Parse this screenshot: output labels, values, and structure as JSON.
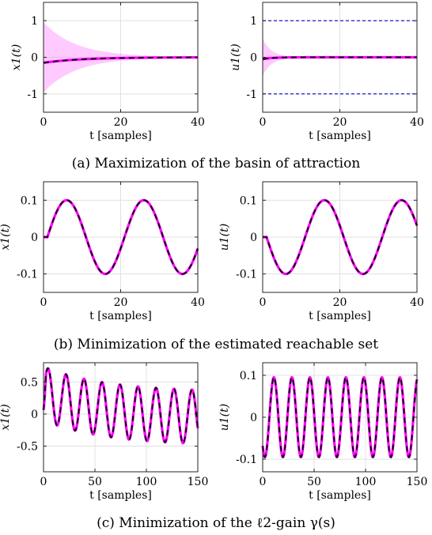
{
  "chart_data": [
    {
      "type": "line",
      "row": 0,
      "col": 0,
      "ylabel": "x1(t)",
      "xlabel": "t [samples]",
      "xlim": [
        0,
        40
      ],
      "ylim": [
        -1.5,
        1.5
      ],
      "xticks": [
        0,
        20,
        40
      ],
      "yticks": [
        -1,
        0,
        1
      ],
      "xtick_labels": [
        "0",
        "20",
        "40"
      ],
      "ytick_labels": [
        "-1",
        "0",
        "1"
      ],
      "grid": true,
      "band": {
        "color": "#ff66ff",
        "kind": "envelope",
        "amp": 0.95,
        "decay": 0.12
      },
      "series": [
        {
          "color": "#ff00ff",
          "dashed_overlay": "#000000",
          "kind": "approach",
          "start": -0.15,
          "decay": 0.1
        }
      ],
      "caption": "(a) Maximization of the basin of attraction"
    },
    {
      "type": "line",
      "row": 0,
      "col": 1,
      "ylabel": "u1(t)",
      "xlabel": "t [samples]",
      "xlim": [
        0,
        40
      ],
      "ylim": [
        -1.5,
        1.5
      ],
      "xticks": [
        0,
        20,
        40
      ],
      "yticks": [
        -1,
        0,
        1
      ],
      "xtick_labels": [
        "0",
        "20",
        "40"
      ],
      "ytick_labels": [
        "-1",
        "0",
        "1"
      ],
      "grid": true,
      "hlines": [
        {
          "y": 1,
          "color": "#0000cc"
        },
        {
          "y": -1,
          "color": "#0000cc"
        }
      ],
      "band": {
        "color": "#ff66ff",
        "kind": "envelope",
        "amp": 0.5,
        "decay": 0.45
      },
      "series": [
        {
          "color": "#ff00ff",
          "dashed_overlay": "#000000",
          "kind": "approach",
          "start": -0.05,
          "decay": 0.4
        }
      ]
    },
    {
      "type": "line",
      "row": 1,
      "col": 0,
      "ylabel": "x1(t)",
      "xlabel": "t [samples]",
      "xlim": [
        0,
        40
      ],
      "ylim": [
        -0.15,
        0.15
      ],
      "xticks": [
        0,
        20,
        40
      ],
      "yticks": [
        -0.1,
        0,
        0.1
      ],
      "xtick_labels": [
        "0",
        "20",
        "40"
      ],
      "ytick_labels": [
        "-0.1",
        "0",
        "0.1"
      ],
      "grid": true,
      "series": [
        {
          "color": "#ff00ff",
          "dashed_overlay": "#000000",
          "kind": "sine",
          "amp": 0.1,
          "period": 20,
          "start": 1,
          "phase": 0,
          "sign": 1
        }
      ],
      "caption": "(b) Minimization of the estimated reachable set"
    },
    {
      "type": "line",
      "row": 1,
      "col": 1,
      "ylabel": "u1(t)",
      "xlabel": "t [samples]",
      "xlim": [
        0,
        40
      ],
      "ylim": [
        -0.15,
        0.15
      ],
      "xticks": [
        0,
        20,
        40
      ],
      "yticks": [
        -0.1,
        0,
        0.1
      ],
      "xtick_labels": [
        "0",
        "20",
        "40"
      ],
      "ytick_labels": [
        "-0.1",
        "0",
        "0.1"
      ],
      "grid": true,
      "series": [
        {
          "color": "#ff00ff",
          "dashed_overlay": "#000000",
          "kind": "sine",
          "amp": 0.1,
          "period": 20,
          "start": 1,
          "phase": 0,
          "sign": -1
        }
      ]
    },
    {
      "type": "line",
      "row": 2,
      "col": 0,
      "ylabel": "x1(t)",
      "xlabel": "t [samples]",
      "xlim": [
        0,
        150
      ],
      "ylim": [
        -0.9,
        0.8
      ],
      "xticks": [
        0,
        50,
        100,
        150
      ],
      "yticks": [
        -0.5,
        0,
        0.5
      ],
      "xtick_labels": [
        "0",
        "50",
        "100",
        "150"
      ],
      "ytick_labels": [
        "-0.5",
        "0",
        "0.5"
      ],
      "grid": true,
      "series": [
        {
          "color": "#ff00ff",
          "dashed_overlay": "#000000",
          "kind": "forced",
          "amp": 0.42,
          "period": 17.5,
          "start": 0,
          "offset0": 0.32,
          "trend": -0.3,
          "sign": 1
        }
      ],
      "caption": "(c) Minimization of the ℓ2-gain γ(s)"
    },
    {
      "type": "line",
      "row": 2,
      "col": 1,
      "ylabel": "u1(t)",
      "xlabel": "t [samples]",
      "xlim": [
        0,
        150
      ],
      "ylim": [
        -0.13,
        0.13
      ],
      "xticks": [
        0,
        50,
        100,
        150
      ],
      "yticks": [
        -0.1,
        0,
        0.1
      ],
      "xtick_labels": [
        "0",
        "50",
        "100",
        "150"
      ],
      "ytick_labels": [
        "-0.1",
        "0",
        "0.1"
      ],
      "grid": true,
      "series": [
        {
          "color": "#ff00ff",
          "dashed_overlay": "#000000",
          "kind": "sine",
          "amp": 0.095,
          "period": 17.5,
          "start": 0,
          "phase": 0.8,
          "sign": -1
        }
      ]
    }
  ]
}
